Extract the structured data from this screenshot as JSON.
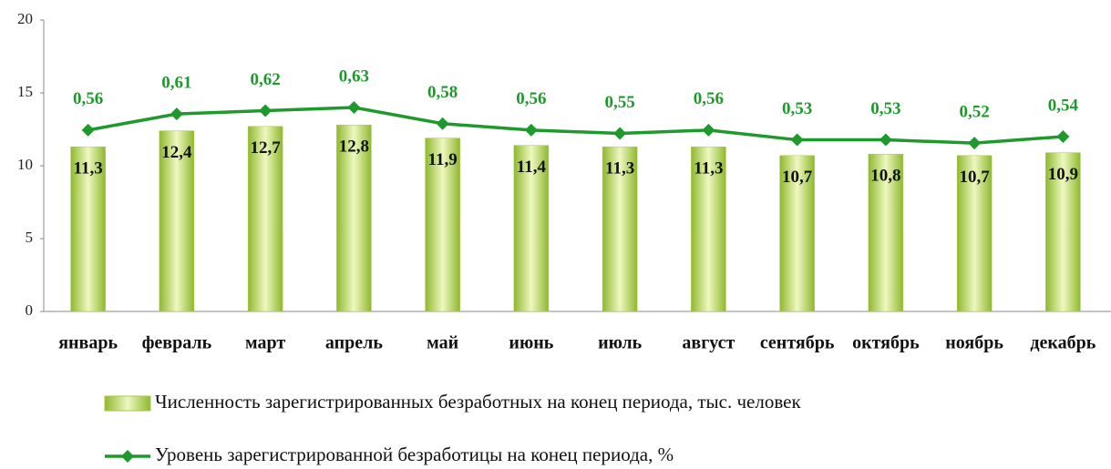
{
  "chart_data": {
    "type": "bar",
    "categories": [
      "январь",
      "февраль",
      "март",
      "апрель",
      "май",
      "июнь",
      "июль",
      "август",
      "сентябрь",
      "октябрь",
      "ноябрь",
      "декабрь"
    ],
    "series": [
      {
        "name": "Численность зарегистрированных безработных на конец периода, тыс. человек",
        "type": "bar",
        "color": "#a6cc45",
        "values": [
          11.3,
          12.4,
          12.7,
          12.8,
          11.9,
          11.4,
          11.3,
          11.3,
          10.7,
          10.8,
          10.7,
          10.9
        ],
        "value_labels": [
          "11,3",
          "12,4",
          "12,7",
          "12,8",
          "11,9",
          "11,4",
          "11,3",
          "11,3",
          "10,7",
          "10,8",
          "10,7",
          "10,9"
        ]
      },
      {
        "name": "Уровень зарегистрированной безработицы на конец периода, %",
        "type": "line",
        "axis": "y2",
        "color": "#1e9a2c",
        "values": [
          0.56,
          0.61,
          0.62,
          0.63,
          0.58,
          0.56,
          0.55,
          0.56,
          0.53,
          0.53,
          0.52,
          0.54
        ],
        "value_labels": [
          "0,56",
          "0,61",
          "0,62",
          "0,63",
          "0,58",
          "0,56",
          "0,55",
          "0,56",
          "0,53",
          "0,53",
          "0,52",
          "0,54"
        ]
      }
    ],
    "ylim": [
      0,
      20
    ],
    "yticks": [
      0,
      5,
      10,
      15,
      20
    ],
    "y2lim": [
      0,
      0.9
    ],
    "grid": false,
    "legend": "bottom"
  }
}
